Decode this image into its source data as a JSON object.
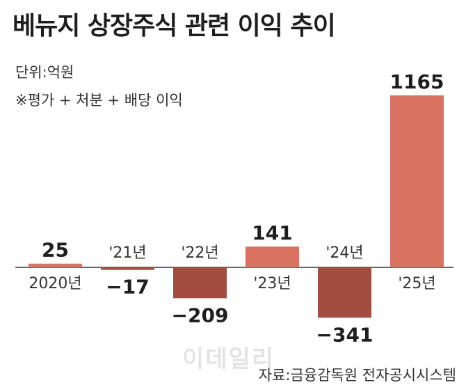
{
  "header": {
    "title": "베뉴지 상장주식 관련 이익 추이",
    "unit": "단위:억원",
    "note": "※평가 + 처분 + 배당 이익"
  },
  "footer": {
    "source": "자료:금융감독원 전자공시시스템",
    "watermark": "이데일리"
  },
  "colors": {
    "positive": "#d97260",
    "negative": "#a24d3f",
    "axis": "#333333",
    "value_text": "#1e1e1e"
  },
  "chart_data": {
    "type": "bar",
    "categories": [
      "2020년",
      "'21년",
      "'22년",
      "'23년",
      "'24년",
      "'25년"
    ],
    "values": [
      25,
      -17,
      -209,
      141,
      -341,
      1165
    ],
    "value_labels": [
      "25",
      "−17",
      "−209",
      "141",
      "−341",
      "1165"
    ],
    "title": "베뉴지 상장주식 관련 이익 추이",
    "ylabel": "",
    "xlabel": "",
    "ylim": [
      -341,
      1165
    ],
    "grid": false,
    "legend": "none"
  }
}
